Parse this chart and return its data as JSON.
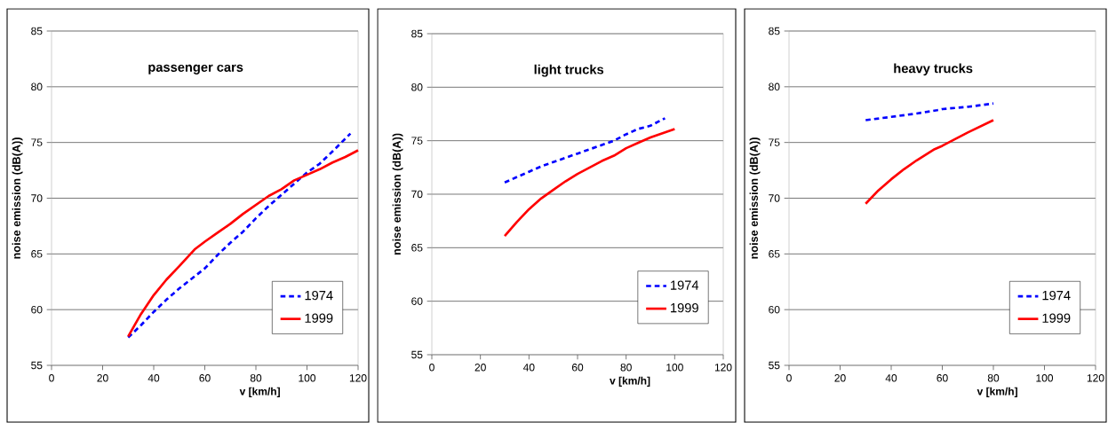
{
  "chart_data": [
    {
      "type": "line",
      "title": "passenger cars",
      "xlabel": "v [km/h]",
      "ylabel": "noise emission (dB(A))",
      "xlim": [
        0,
        120
      ],
      "ylim": [
        55,
        85
      ],
      "xticks": [
        0,
        20,
        40,
        60,
        80,
        100,
        120
      ],
      "yticks": [
        55,
        60,
        65,
        70,
        75,
        80,
        85
      ],
      "grid": "y",
      "legend": "bottom right",
      "series": [
        {
          "name": "1974",
          "color": "#0000ff",
          "line_style": "dashed",
          "x": [
            30,
            35,
            40,
            45,
            50,
            55,
            60,
            65,
            70,
            75,
            80,
            85,
            90,
            95,
            100,
            105,
            110,
            117
          ],
          "values": [
            57.5,
            58.6,
            59.8,
            60.9,
            61.9,
            62.8,
            63.7,
            64.9,
            66.0,
            67.0,
            68.2,
            69.3,
            70.3,
            71.3,
            72.3,
            73.1,
            74.2,
            75.8
          ]
        },
        {
          "name": "1999",
          "color": "#ff0000",
          "line_style": "solid",
          "x": [
            30,
            35,
            40,
            45,
            50,
            56,
            60,
            65,
            70,
            75,
            80,
            85,
            90,
            95,
            100,
            105,
            110,
            115,
            120
          ],
          "values": [
            57.6,
            59.6,
            61.3,
            62.7,
            63.9,
            65.4,
            66.1,
            66.9,
            67.7,
            68.6,
            69.4,
            70.2,
            70.8,
            71.6,
            72.1,
            72.6,
            73.2,
            73.7,
            74.3
          ]
        }
      ]
    },
    {
      "type": "line",
      "title": "light trucks",
      "xlabel": "v [km/h]",
      "ylabel": "noise emission (dB(A))",
      "xlim": [
        0,
        120
      ],
      "ylim": [
        55,
        85
      ],
      "xticks": [
        0,
        20,
        40,
        60,
        80,
        100,
        120
      ],
      "yticks": [
        55,
        60,
        65,
        70,
        75,
        80,
        85
      ],
      "grid": "y",
      "legend": "bottom right",
      "series": [
        {
          "name": "1974",
          "color": "#0000ff",
          "line_style": "dashed",
          "x": [
            30,
            35,
            40,
            45,
            50,
            55,
            60,
            65,
            70,
            75,
            80,
            85,
            90,
            96
          ],
          "values": [
            71.1,
            71.6,
            72.1,
            72.6,
            73.0,
            73.4,
            73.8,
            74.2,
            74.6,
            75.0,
            75.6,
            76.1,
            76.4,
            77.1
          ]
        },
        {
          "name": "1999",
          "color": "#ff0000",
          "line_style": "solid",
          "x": [
            30,
            35,
            40,
            45,
            50,
            55,
            60,
            65,
            70,
            75,
            80,
            85,
            90,
            95,
            100
          ],
          "values": [
            66.1,
            67.4,
            68.6,
            69.6,
            70.4,
            71.2,
            71.9,
            72.5,
            73.1,
            73.6,
            74.3,
            74.8,
            75.3,
            75.7,
            76.1
          ]
        }
      ]
    },
    {
      "type": "line",
      "title": "heavy trucks",
      "xlabel": "v [km/h]",
      "ylabel": "noise emission (dB(A))",
      "xlim": [
        0,
        120
      ],
      "ylim": [
        55,
        85
      ],
      "xticks": [
        0,
        20,
        40,
        60,
        80,
        100,
        120
      ],
      "yticks": [
        55,
        60,
        65,
        70,
        75,
        80,
        85
      ],
      "grid": "y",
      "legend": "bottom right",
      "series": [
        {
          "name": "1974",
          "color": "#0000ff",
          "line_style": "dashed",
          "x": [
            30,
            40,
            50,
            58,
            60,
            70,
            80
          ],
          "values": [
            77.0,
            77.3,
            77.6,
            77.9,
            78.0,
            78.2,
            78.5
          ]
        },
        {
          "name": "1999",
          "color": "#ff0000",
          "line_style": "solid",
          "x": [
            30,
            35,
            40,
            45,
            50,
            57,
            60,
            70,
            80
          ],
          "values": [
            69.5,
            70.7,
            71.7,
            72.6,
            73.4,
            74.4,
            74.7,
            75.9,
            77.0
          ]
        }
      ]
    }
  ]
}
